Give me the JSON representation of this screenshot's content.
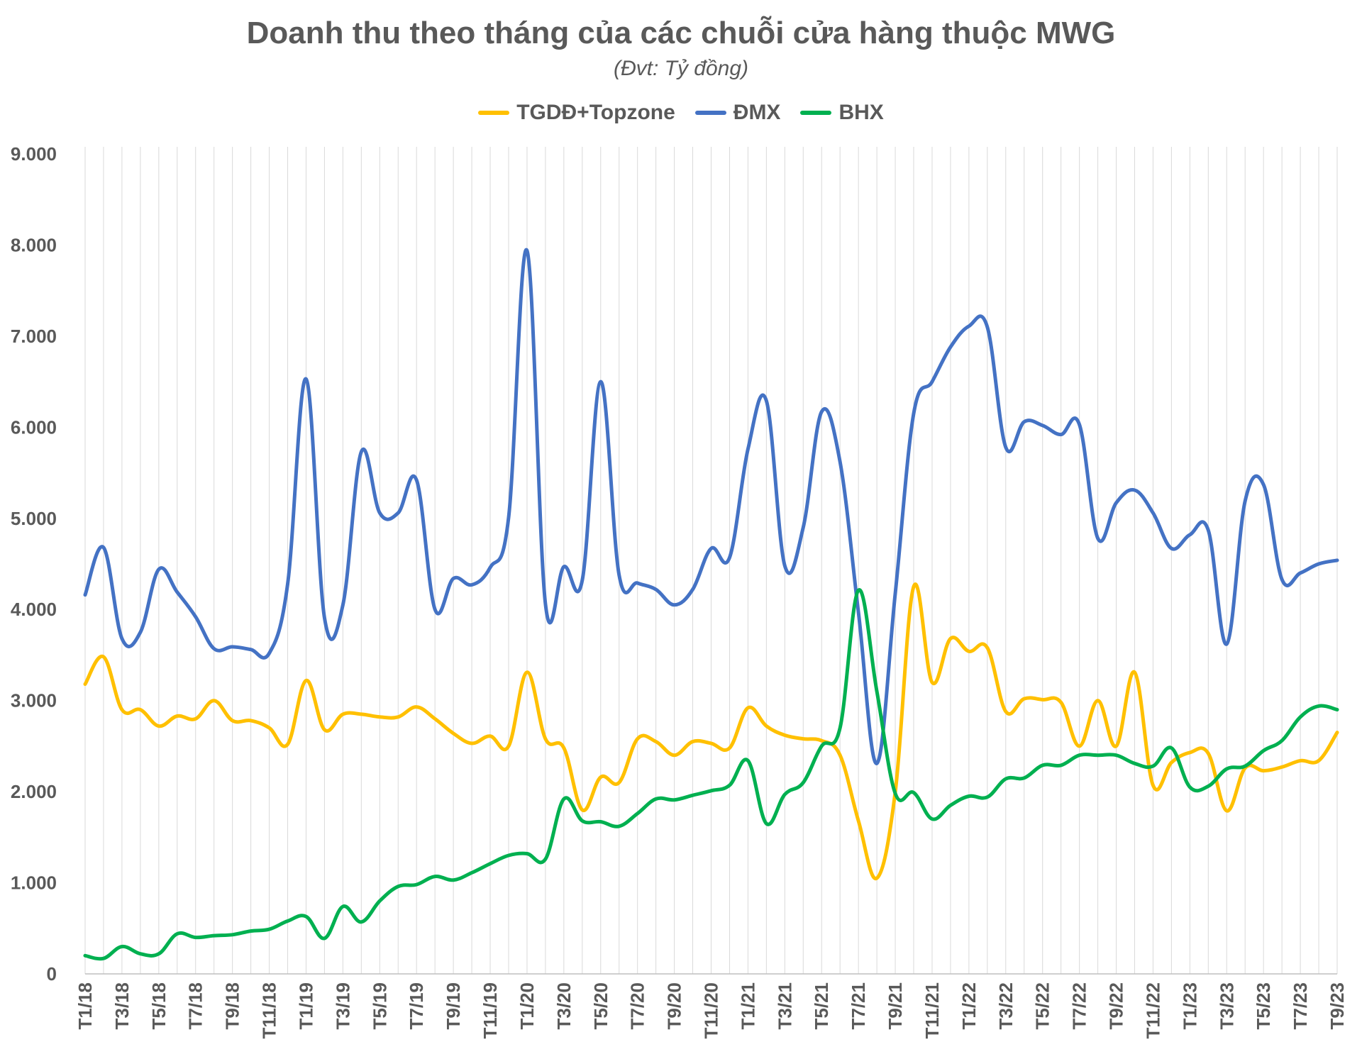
{
  "chart_data": {
    "type": "line",
    "title": "Doanh thu theo tháng của các chuỗi cửa hàng thuộc MWG",
    "subtitle": "(Đvt: Tỷ đồng)",
    "ylim": [
      0,
      9000
    ],
    "yticks": [
      0,
      1000,
      2000,
      3000,
      4000,
      5000,
      6000,
      7000,
      8000,
      9000
    ],
    "ytick_labels": [
      "0",
      "1.000",
      "2.000",
      "3.000",
      "4.000",
      "5.000",
      "6.000",
      "7.000",
      "8.000",
      "9.000"
    ],
    "grid": "vertical",
    "legend": "top-center",
    "x": [
      "T1/18",
      "T2/18",
      "T3/18",
      "T4/18",
      "T5/18",
      "T6/18",
      "T7/18",
      "T8/18",
      "T9/18",
      "T10/18",
      "T11/18",
      "T12/18",
      "T1/19",
      "T2/19",
      "T3/19",
      "T4/19",
      "T5/19",
      "T6/19",
      "T7/19",
      "T8/19",
      "T9/19",
      "T10/19",
      "T11/19",
      "T12/19",
      "T1/20",
      "T2/20",
      "T3/20",
      "T4/20",
      "T5/20",
      "T6/20",
      "T7/20",
      "T8/20",
      "T9/20",
      "T10/20",
      "T11/20",
      "T12/20",
      "T1/21",
      "T2/21",
      "T3/21",
      "T4/21",
      "T5/21",
      "T6/21",
      "T7/21",
      "T8/21",
      "T9/21",
      "T10/21",
      "T11/21",
      "T12/21",
      "T1/22",
      "T2/22",
      "T3/22",
      "T4/22",
      "T5/22",
      "T6/22",
      "T7/22",
      "T8/22",
      "T9/22",
      "T10/22",
      "T11/22",
      "T12/22",
      "T1/23",
      "T2/23",
      "T3/23",
      "T4/23",
      "T5/23",
      "T6/23",
      "T7/23",
      "T8/23",
      "T9/23"
    ],
    "series": [
      {
        "name": "TGDĐ+Topzone",
        "color": "#FFC000",
        "values": [
          3180,
          3480,
          2900,
          2900,
          2720,
          2830,
          2800,
          3000,
          2780,
          2780,
          2700,
          2520,
          3220,
          2680,
          2850,
          2850,
          2820,
          2820,
          2930,
          2800,
          2640,
          2530,
          2610,
          2500,
          3310,
          2580,
          2480,
          1800,
          2160,
          2100,
          2580,
          2550,
          2400,
          2550,
          2530,
          2480,
          2920,
          2720,
          2620,
          2580,
          2560,
          2400,
          1680,
          1050,
          2000,
          4250,
          3200,
          3680,
          3540,
          3580,
          2880,
          3020,
          3010,
          2980,
          2500,
          3000,
          2500,
          3310,
          2070,
          2320,
          2430,
          2420,
          1790,
          2260,
          2230,
          2270,
          2340,
          2340,
          2650
        ]
      },
      {
        "name": "ĐMX",
        "color": "#4472C4",
        "values": [
          4160,
          4680,
          3680,
          3750,
          4440,
          4190,
          3920,
          3570,
          3590,
          3560,
          3520,
          4280,
          6530,
          3910,
          4050,
          5730,
          5060,
          5060,
          5420,
          4000,
          4340,
          4270,
          4460,
          5010,
          7940,
          4060,
          4470,
          4320,
          6500,
          4380,
          4290,
          4220,
          4050,
          4220,
          4670,
          4570,
          5760,
          6290,
          4480,
          4900,
          6170,
          5620,
          3970,
          2310,
          4180,
          6150,
          6500,
          6880,
          7110,
          7100,
          5780,
          6060,
          6020,
          5920,
          6030,
          4780,
          5170,
          5310,
          5060,
          4670,
          4820,
          4870,
          3620,
          5190,
          5370,
          4330,
          4400,
          4500,
          4540
        ]
      },
      {
        "name": "BHX",
        "color": "#00B050",
        "values": [
          200,
          170,
          300,
          220,
          220,
          440,
          400,
          420,
          430,
          470,
          490,
          580,
          630,
          390,
          740,
          570,
          800,
          960,
          980,
          1070,
          1030,
          1110,
          1210,
          1300,
          1320,
          1260,
          1920,
          1680,
          1670,
          1620,
          1760,
          1920,
          1910,
          1960,
          2010,
          2070,
          2340,
          1650,
          1970,
          2100,
          2500,
          2700,
          4210,
          3100,
          1980,
          1990,
          1700,
          1850,
          1950,
          1940,
          2140,
          2150,
          2290,
          2290,
          2400,
          2400,
          2400,
          2310,
          2280,
          2480,
          2050,
          2060,
          2250,
          2280,
          2450,
          2560,
          2820,
          2940,
          2900
        ]
      }
    ]
  }
}
